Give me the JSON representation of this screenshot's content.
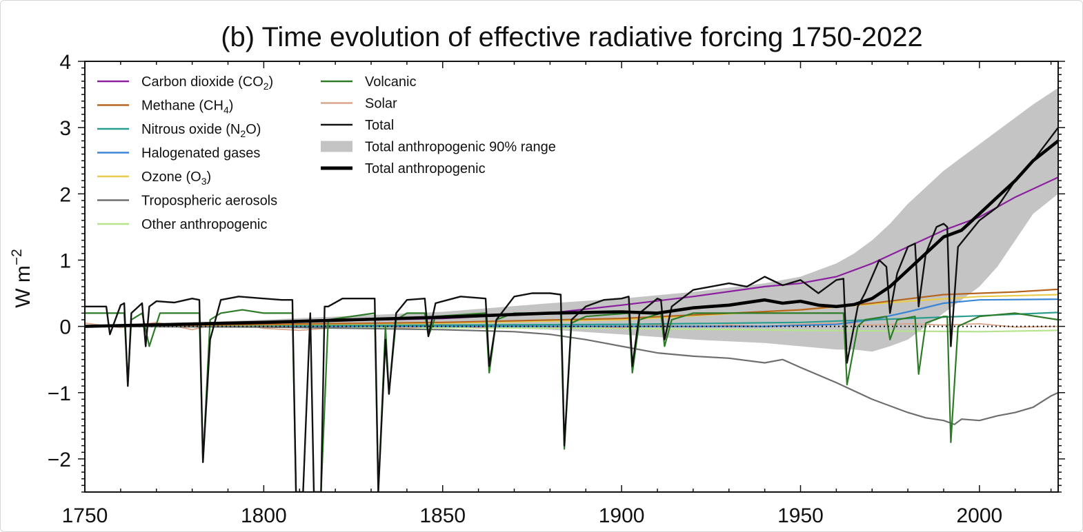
{
  "chart_data": {
    "type": "line",
    "title": "(b) Time evolution of effective radiative forcing 1750-2022",
    "xlabel": "",
    "ylabel_base": "W m",
    "ylabel_sup": "−2",
    "xlim": [
      1750,
      2022
    ],
    "ylim": [
      -2.5,
      4
    ],
    "xticks": [
      1750,
      1800,
      1850,
      1900,
      1950,
      2000
    ],
    "xtick_labels": [
      "1750",
      "1800",
      "1850",
      "1900",
      "1950",
      "2000"
    ],
    "yticks": [
      -2,
      -1,
      0,
      1,
      2,
      3,
      4
    ],
    "ytick_labels": [
      "−2",
      "−1",
      "0",
      "1",
      "2",
      "3",
      "4"
    ],
    "zero_line": "dotted",
    "grid": false,
    "legend_position": "top-left",
    "series": [
      {
        "name": "Carbon dioxide (CO2)",
        "label_main": "Carbon dioxide (CO",
        "label_sub": "2",
        "label_end": ")",
        "color": "#8b1fa0",
        "width": 2.2,
        "x": [
          1750,
          1800,
          1850,
          1880,
          1900,
          1920,
          1940,
          1950,
          1960,
          1970,
          1980,
          1990,
          2000,
          2010,
          2022
        ],
        "y": [
          0.0,
          0.06,
          0.12,
          0.2,
          0.32,
          0.45,
          0.6,
          0.65,
          0.75,
          0.95,
          1.2,
          1.45,
          1.65,
          1.95,
          2.25
        ]
      },
      {
        "name": "Methane (CH4)",
        "label_main": "Methane (CH",
        "label_sub": "4",
        "label_end": ")",
        "color": "#b5651d",
        "width": 2.2,
        "x": [
          1750,
          1850,
          1900,
          1950,
          1970,
          1990,
          2010,
          2022
        ],
        "y": [
          0.0,
          0.06,
          0.12,
          0.25,
          0.35,
          0.48,
          0.52,
          0.56
        ]
      },
      {
        "name": "Nitrous oxide (N2O)",
        "label_main": "Nitrous oxide (N",
        "label_sub": "2",
        "label_end": "O)",
        "color": "#2a9d8f",
        "width": 2.2,
        "x": [
          1750,
          1900,
          1950,
          1980,
          2000,
          2022
        ],
        "y": [
          0.0,
          0.03,
          0.06,
          0.12,
          0.16,
          0.21
        ]
      },
      {
        "name": "Halogenated gases",
        "label_main": "Halogenated gases",
        "label_sub": "",
        "label_end": "",
        "color": "#3a86d4",
        "width": 2.2,
        "x": [
          1750,
          1940,
          1960,
          1970,
          1980,
          1990,
          2000,
          2022
        ],
        "y": [
          0.0,
          0.0,
          0.03,
          0.1,
          0.22,
          0.35,
          0.4,
          0.41
        ]
      },
      {
        "name": "Ozone (O3)",
        "label_main": "Ozone (O",
        "label_sub": "3",
        "label_end": ")",
        "color": "#e8cc4a",
        "width": 2.2,
        "x": [
          1750,
          1850,
          1900,
          1950,
          1980,
          2000,
          2022
        ],
        "y": [
          0.0,
          0.05,
          0.1,
          0.25,
          0.38,
          0.45,
          0.48
        ]
      },
      {
        "name": "Tropospheric aerosols",
        "label_main": "Tropospheric aerosols",
        "label_sub": "",
        "label_end": "",
        "color": "#6e6e6e",
        "width": 2.2,
        "x": [
          1750,
          1800,
          1850,
          1870,
          1880,
          1890,
          1900,
          1910,
          1920,
          1930,
          1940,
          1945,
          1950,
          1960,
          1970,
          1980,
          1985,
          1990,
          1993,
          1995,
          2000,
          2005,
          2010,
          2015,
          2020,
          2022
        ],
        "y": [
          0.0,
          -0.01,
          -0.05,
          -0.08,
          -0.12,
          -0.2,
          -0.3,
          -0.4,
          -0.45,
          -0.48,
          -0.55,
          -0.5,
          -0.62,
          -0.85,
          -1.1,
          -1.3,
          -1.38,
          -1.42,
          -1.48,
          -1.4,
          -1.42,
          -1.35,
          -1.3,
          -1.22,
          -1.05,
          -1.0
        ]
      },
      {
        "name": "Other anthropogenic",
        "label_main": "Other anthropogenic",
        "label_sub": "",
        "label_end": "",
        "color": "#b5e48c",
        "width": 2.2,
        "x": [
          1750,
          1900,
          1950,
          2000,
          2022
        ],
        "y": [
          0.0,
          -0.03,
          -0.06,
          -0.08,
          -0.06
        ]
      },
      {
        "name": "Volcanic",
        "label_main": "Volcanic",
        "label_sub": "",
        "label_end": "",
        "color": "#2d7a27",
        "width": 2.2,
        "x": [
          1750,
          1761,
          1762,
          1763,
          1766,
          1768,
          1771,
          1782,
          1783,
          1785,
          1788,
          1794,
          1800,
          1808,
          1809,
          1811,
          1815,
          1816,
          1818,
          1831,
          1832,
          1834,
          1835,
          1837,
          1840,
          1845,
          1846,
          1848,
          1862,
          1863,
          1865,
          1870,
          1883,
          1884,
          1886,
          1890,
          1902,
          1903,
          1905,
          1911,
          1912,
          1914,
          1920,
          1950,
          1962,
          1963,
          1966,
          1968,
          1974,
          1975,
          1977,
          1982,
          1983,
          1985,
          1990,
          1991,
          1992,
          1994,
          2000,
          2010,
          2022
        ],
        "y": [
          0.2,
          0.2,
          -0.88,
          0.1,
          0.2,
          -0.3,
          0.2,
          0.2,
          -2.05,
          0.1,
          0.2,
          0.25,
          0.2,
          0.2,
          -2.5,
          -2.5,
          -2.5,
          -2.5,
          0.1,
          0.2,
          -2.5,
          0.0,
          -1.02,
          0.1,
          0.2,
          0.2,
          -0.15,
          0.15,
          0.2,
          -0.7,
          0.1,
          0.2,
          0.2,
          -1.85,
          0.05,
          0.15,
          0.2,
          -0.7,
          0.1,
          0.2,
          -0.3,
          0.1,
          0.2,
          0.2,
          0.2,
          -0.88,
          0.0,
          0.1,
          0.15,
          -0.2,
          0.1,
          0.15,
          -0.72,
          0.05,
          0.15,
          0.15,
          -1.75,
          0.0,
          0.15,
          0.2,
          0.1
        ]
      },
      {
        "name": "Solar",
        "label_main": "Solar",
        "label_sub": "",
        "label_end": "",
        "color": "#d9a58a",
        "width": 1.8,
        "x": [
          1750,
          1760,
          1770,
          1780,
          1790,
          1800,
          1810,
          1820,
          1830,
          1840,
          1850,
          1860,
          1870,
          1880,
          1890,
          1900,
          1910,
          1920,
          1930,
          1940,
          1950,
          1960,
          1970,
          1980,
          1990,
          2000,
          2010,
          2022
        ],
        "y": [
          0.05,
          -0.02,
          0.06,
          -0.05,
          0.07,
          -0.03,
          -0.06,
          -0.02,
          0.02,
          -0.03,
          0.03,
          -0.02,
          0.03,
          -0.01,
          0.0,
          -0.02,
          0.02,
          -0.01,
          0.02,
          0.0,
          0.03,
          0.05,
          0.02,
          0.04,
          0.02,
          0.04,
          -0.01,
          0.0
        ]
      },
      {
        "name": "Total",
        "label_main": "Total",
        "label_sub": "",
        "label_end": "",
        "color": "#111111",
        "width": 2.4,
        "x": [
          1750,
          1756,
          1757,
          1760,
          1761,
          1762,
          1763,
          1766,
          1767,
          1768,
          1770,
          1775,
          1780,
          1782,
          1783,
          1785,
          1788,
          1793,
          1800,
          1805,
          1808,
          1809,
          1811,
          1813,
          1814,
          1815,
          1816,
          1817,
          1818,
          1822,
          1826,
          1830,
          1831,
          1832,
          1834,
          1835,
          1837,
          1840,
          1845,
          1846,
          1848,
          1855,
          1862,
          1863,
          1865,
          1870,
          1875,
          1880,
          1883,
          1884,
          1886,
          1890,
          1895,
          1900,
          1902,
          1903,
          1905,
          1910,
          1911,
          1912,
          1914,
          1920,
          1925,
          1930,
          1935,
          1940,
          1945,
          1950,
          1955,
          1960,
          1962,
          1963,
          1966,
          1968,
          1972,
          1974,
          1975,
          1977,
          1980,
          1982,
          1983,
          1985,
          1988,
          1990,
          1991,
          1992,
          1994,
          2000,
          2005,
          2010,
          2015,
          2022
        ],
        "y": [
          0.3,
          0.3,
          -0.12,
          0.32,
          0.35,
          -0.9,
          0.2,
          0.35,
          -0.3,
          0.3,
          0.38,
          0.36,
          0.42,
          0.4,
          -2.05,
          -0.2,
          0.4,
          0.45,
          0.42,
          0.4,
          0.4,
          -2.5,
          -2.5,
          0.2,
          -2.5,
          -2.5,
          -2.5,
          0.3,
          0.3,
          0.42,
          0.42,
          0.42,
          0.42,
          -2.5,
          -0.2,
          -1.02,
          0.2,
          0.4,
          0.42,
          -0.15,
          0.35,
          0.45,
          0.42,
          -0.6,
          0.1,
          0.45,
          0.5,
          0.5,
          0.48,
          -1.8,
          0.1,
          0.3,
          0.4,
          0.42,
          0.45,
          -0.6,
          0.2,
          0.42,
          0.4,
          -0.2,
          0.3,
          0.55,
          0.6,
          0.65,
          0.6,
          0.75,
          0.62,
          0.7,
          0.5,
          0.7,
          0.72,
          -0.55,
          0.3,
          0.5,
          1.0,
          0.9,
          0.2,
          0.8,
          1.2,
          1.25,
          0.3,
          1.1,
          1.5,
          1.55,
          1.5,
          -0.3,
          1.2,
          1.6,
          1.8,
          2.2,
          2.5,
          3.0
        ]
      },
      {
        "name": "Total anthropogenic",
        "label_main": "Total anthropogenic",
        "label_sub": "",
        "label_end": "",
        "color": "#000000",
        "width": 4.6,
        "x": [
          1750,
          1800,
          1850,
          1880,
          1900,
          1910,
          1920,
          1930,
          1940,
          1945,
          1950,
          1955,
          1960,
          1965,
          1970,
          1975,
          1980,
          1985,
          1990,
          1995,
          2000,
          2005,
          2010,
          2015,
          2022
        ],
        "y": [
          0.0,
          0.06,
          0.14,
          0.2,
          0.22,
          0.2,
          0.28,
          0.32,
          0.4,
          0.35,
          0.38,
          0.32,
          0.3,
          0.33,
          0.42,
          0.6,
          0.85,
          1.1,
          1.35,
          1.45,
          1.7,
          1.95,
          2.2,
          2.5,
          2.8
        ]
      }
    ],
    "range_band": {
      "name": "Total anthropogenic 90% range",
      "label": "Total anthropogenic 90% range",
      "color": "#c4c4c4",
      "x": [
        1750,
        1800,
        1850,
        1880,
        1900,
        1920,
        1940,
        1950,
        1960,
        1965,
        1970,
        1975,
        1980,
        1985,
        1990,
        1995,
        2000,
        2005,
        2010,
        2015,
        2022
      ],
      "lower": [
        0.0,
        0.0,
        0.0,
        -0.05,
        -0.12,
        -0.2,
        -0.25,
        -0.3,
        -0.35,
        -0.35,
        -0.38,
        -0.3,
        -0.2,
        0.0,
        0.2,
        0.4,
        0.6,
        0.9,
        1.3,
        1.7,
        2.0
      ],
      "upper": [
        0.0,
        0.1,
        0.22,
        0.35,
        0.42,
        0.52,
        0.65,
        0.75,
        0.95,
        1.1,
        1.3,
        1.55,
        1.85,
        2.1,
        2.35,
        2.55,
        2.75,
        2.95,
        3.15,
        3.35,
        3.6
      ]
    },
    "legend_col1": [
      "Carbon dioxide (CO2)",
      "Methane (CH4)",
      "Nitrous oxide (N2O)",
      "Halogenated gases",
      "Ozone (O3)",
      "Tropospheric aerosols",
      "Other anthropogenic"
    ],
    "legend_col2": [
      "Volcanic",
      "Solar",
      "Total",
      "Total anthropogenic 90% range",
      "Total anthropogenic"
    ]
  }
}
